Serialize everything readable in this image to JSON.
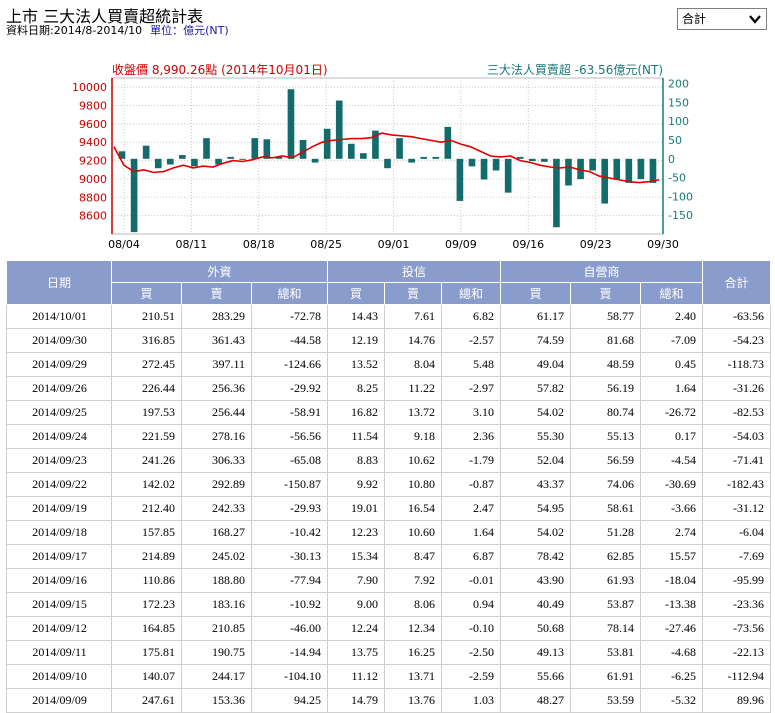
{
  "header": {
    "title": "上市 三大法人買賣超統計表",
    "date_label": "資料日期:2014/8-2014/10",
    "unit_label": "單位：億元(NT)"
  },
  "select": {
    "value": "合計"
  },
  "chart_labels": {
    "left_legend": "收盤價 8,990.26點 (2014年10月01日)",
    "right_legend": "三大法人買賣超 -63.56億元(NT)"
  },
  "colors": {
    "price_line": "#e00000",
    "bar": "#136b6b",
    "header_bg": "#8a9ccb",
    "left_axis": "#cc0000",
    "right_axis": "#1a7a7a"
  },
  "chart_data": {
    "type": "bar",
    "x_tick_labels": [
      "08/04",
      "08/11",
      "08/18",
      "08/25",
      "09/01",
      "09/09",
      "09/16",
      "09/23",
      "09/30"
    ],
    "left_axis": {
      "label": "收盤價",
      "ylim": [
        8400,
        10100
      ],
      "ticks": [
        8600,
        8800,
        9000,
        9200,
        9400,
        9600,
        9800,
        10000
      ]
    },
    "right_axis": {
      "label": "三大法人買賣超",
      "ylim": [
        -200,
        215
      ],
      "ticks": [
        -150,
        -100,
        -50,
        0,
        50,
        100,
        150,
        200
      ]
    },
    "series": [
      {
        "name": "三大法人買賣超",
        "kind": "bar",
        "values": [
          20,
          -195,
          35,
          -25,
          -15,
          10,
          -20,
          55,
          -15,
          5,
          0,
          55,
          52,
          5,
          185,
          50,
          -10,
          80,
          155,
          40,
          15,
          75,
          -25,
          55,
          -10,
          5,
          5,
          85,
          -112,
          -20,
          -55,
          -31,
          -90,
          5,
          -6,
          -8,
          -182,
          -71,
          -54,
          -31,
          -119,
          -54,
          -64,
          -54,
          -64
        ]
      },
      {
        "name": "收盤價",
        "kind": "line",
        "values": [
          9350,
          9150,
          9080,
          9100,
          9070,
          9080,
          9120,
          9150,
          9120,
          9140,
          9130,
          9170,
          9200,
          9190,
          9210,
          9240,
          9230,
          9250,
          9230,
          9290,
          9350,
          9400,
          9420,
          9430,
          9440,
          9440,
          9450,
          9500,
          9480,
          9470,
          9460,
          9440,
          9420,
          9400,
          9420,
          9380,
          9350,
          9300,
          9250,
          9240,
          9250,
          9200,
          9180,
          9150,
          9130,
          9120,
          9130,
          9100,
          9080,
          9030,
          9010,
          8990,
          8970,
          8960,
          8970,
          8990
        ]
      }
    ]
  },
  "table": {
    "headers": {
      "date": "日期",
      "foreign": "外資",
      "trust": "投信",
      "dealer": "自營商",
      "total": "合計",
      "buy": "買",
      "sell": "賣",
      "net": "總和"
    },
    "rows": [
      [
        "2014/10/01",
        "210.51",
        "283.29",
        "-72.78",
        "14.43",
        "7.61",
        "6.82",
        "61.17",
        "58.77",
        "2.40",
        "-63.56"
      ],
      [
        "2014/09/30",
        "316.85",
        "361.43",
        "-44.58",
        "12.19",
        "14.76",
        "-2.57",
        "74.59",
        "81.68",
        "-7.09",
        "-54.23"
      ],
      [
        "2014/09/29",
        "272.45",
        "397.11",
        "-124.66",
        "13.52",
        "8.04",
        "5.48",
        "49.04",
        "48.59",
        "0.45",
        "-118.73"
      ],
      [
        "2014/09/26",
        "226.44",
        "256.36",
        "-29.92",
        "8.25",
        "11.22",
        "-2.97",
        "57.82",
        "56.19",
        "1.64",
        "-31.26"
      ],
      [
        "2014/09/25",
        "197.53",
        "256.44",
        "-58.91",
        "16.82",
        "13.72",
        "3.10",
        "54.02",
        "80.74",
        "-26.72",
        "-82.53"
      ],
      [
        "2014/09/24",
        "221.59",
        "278.16",
        "-56.56",
        "11.54",
        "9.18",
        "2.36",
        "55.30",
        "55.13",
        "0.17",
        "-54.03"
      ],
      [
        "2014/09/23",
        "241.26",
        "306.33",
        "-65.08",
        "8.83",
        "10.62",
        "-1.79",
        "52.04",
        "56.59",
        "-4.54",
        "-71.41"
      ],
      [
        "2014/09/22",
        "142.02",
        "292.89",
        "-150.87",
        "9.92",
        "10.80",
        "-0.87",
        "43.37",
        "74.06",
        "-30.69",
        "-182.43"
      ],
      [
        "2014/09/19",
        "212.40",
        "242.33",
        "-29.93",
        "19.01",
        "16.54",
        "2.47",
        "54.95",
        "58.61",
        "-3.66",
        "-31.12"
      ],
      [
        "2014/09/18",
        "157.85",
        "168.27",
        "-10.42",
        "12.23",
        "10.60",
        "1.64",
        "54.02",
        "51.28",
        "2.74",
        "-6.04"
      ],
      [
        "2014/09/17",
        "214.89",
        "245.02",
        "-30.13",
        "15.34",
        "8.47",
        "6.87",
        "78.42",
        "62.85",
        "15.57",
        "-7.69"
      ],
      [
        "2014/09/16",
        "110.86",
        "188.80",
        "-77.94",
        "7.90",
        "7.92",
        "-0.01",
        "43.90",
        "61.93",
        "-18.04",
        "-95.99"
      ],
      [
        "2014/09/15",
        "172.23",
        "183.16",
        "-10.92",
        "9.00",
        "8.06",
        "0.94",
        "40.49",
        "53.87",
        "-13.38",
        "-23.36"
      ],
      [
        "2014/09/12",
        "164.85",
        "210.85",
        "-46.00",
        "12.24",
        "12.34",
        "-0.10",
        "50.68",
        "78.14",
        "-27.46",
        "-73.56"
      ],
      [
        "2014/09/11",
        "175.81",
        "190.75",
        "-14.94",
        "13.75",
        "16.25",
        "-2.50",
        "49.13",
        "53.81",
        "-4.68",
        "-22.13"
      ],
      [
        "2014/09/10",
        "140.07",
        "244.17",
        "-104.10",
        "11.12",
        "13.71",
        "-2.59",
        "55.66",
        "61.91",
        "-6.25",
        "-112.94"
      ],
      [
        "2014/09/09",
        "247.61",
        "153.36",
        "94.25",
        "14.79",
        "13.76",
        "1.03",
        "48.27",
        "53.59",
        "-5.32",
        "89.96"
      ]
    ]
  }
}
